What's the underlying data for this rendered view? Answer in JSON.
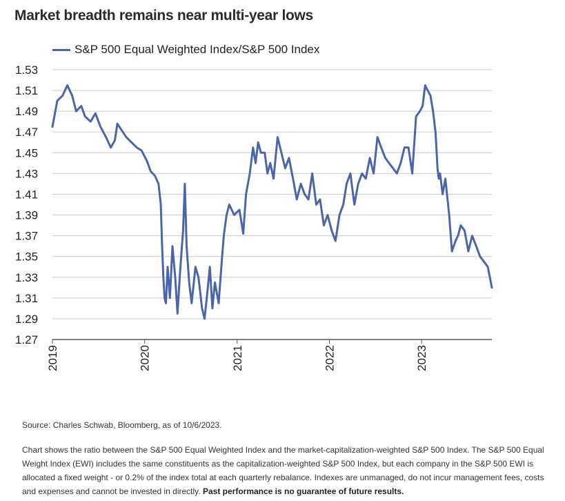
{
  "title": "Market breadth remains near multi-year lows",
  "source": "Source: Charles Schwab, Bloomberg, as of 10/6/2023.",
  "description": "Chart shows the ratio between the S&P 500 Equal Weighted Index and the market-capitalization-weighted S&P 500 Index. The S&P 500 Equal Weight Index (EWI) includes the same constituents as the capitalization-weighted S&P 500 Index, but each company in the S&P 500 EWI is allocated a fixed weight - or 0.2% of the index total at each quarterly rebalance. Indexes are unmanaged, do not incur management fees, costs and expenses and cannot be invested in directly.",
  "disclaimer": "Past performance is no guarantee of future results.",
  "colors": {
    "series": "#4a66a8",
    "grid": "#cccccc",
    "axis": "#555555"
  },
  "chart_data": {
    "type": "line",
    "title": "Market breadth remains near multi-year lows",
    "legend_position": "top-left",
    "grid": true,
    "series": [
      {
        "name": "S&P 500 Equal Weighted Index/S&P 500 Index",
        "x": [
          "2019-01-01",
          "2019-01-20",
          "2019-02-10",
          "2019-03-01",
          "2019-03-20",
          "2019-04-05",
          "2019-04-25",
          "2019-05-10",
          "2019-06-01",
          "2019-06-20",
          "2019-07-10",
          "2019-08-01",
          "2019-08-20",
          "2019-09-05",
          "2019-09-15",
          "2019-10-01",
          "2019-10-20",
          "2019-11-10",
          "2019-12-01",
          "2019-12-20",
          "2020-01-10",
          "2020-01-25",
          "2020-02-10",
          "2020-02-25",
          "2020-03-05",
          "2020-03-10",
          "2020-03-15",
          "2020-03-20",
          "2020-03-25",
          "2020-04-01",
          "2020-04-10",
          "2020-04-20",
          "2020-05-01",
          "2020-05-10",
          "2020-05-20",
          "2020-06-01",
          "2020-06-08",
          "2020-06-15",
          "2020-06-25",
          "2020-07-05",
          "2020-07-20",
          "2020-08-01",
          "2020-08-15",
          "2020-08-25",
          "2020-09-05",
          "2020-09-15",
          "2020-09-25",
          "2020-10-05",
          "2020-10-20",
          "2020-11-01",
          "2020-11-09",
          "2020-11-20",
          "2020-12-01",
          "2020-12-20",
          "2021-01-10",
          "2021-01-25",
          "2021-02-05",
          "2021-02-20",
          "2021-03-05",
          "2021-03-15",
          "2021-03-25",
          "2021-04-05",
          "2021-04-20",
          "2021-05-01",
          "2021-05-12",
          "2021-05-25",
          "2021-06-10",
          "2021-06-25",
          "2021-07-10",
          "2021-07-25",
          "2021-08-10",
          "2021-08-25",
          "2021-09-10",
          "2021-09-25",
          "2021-10-10",
          "2021-10-25",
          "2021-11-10",
          "2021-11-25",
          "2021-12-10",
          "2021-12-25",
          "2022-01-10",
          "2022-01-25",
          "2022-02-10",
          "2022-02-25",
          "2022-03-10",
          "2022-03-25",
          "2022-04-10",
          "2022-04-25",
          "2022-05-10",
          "2022-05-25",
          "2022-06-10",
          "2022-06-25",
          "2022-07-10",
          "2022-07-25",
          "2022-08-10",
          "2022-08-25",
          "2022-09-10",
          "2022-09-25",
          "2022-10-10",
          "2022-10-25",
          "2022-11-10",
          "2022-11-25",
          "2022-12-10",
          "2022-12-25",
          "2023-01-05",
          "2023-01-15",
          "2023-01-25",
          "2023-02-05",
          "2023-02-15",
          "2023-02-25",
          "2023-03-05",
          "2023-03-10",
          "2023-03-15",
          "2023-03-25",
          "2023-04-05",
          "2023-04-20",
          "2023-05-01",
          "2023-05-15",
          "2023-05-25",
          "2023-06-05",
          "2023-06-20",
          "2023-07-05",
          "2023-07-20",
          "2023-08-05",
          "2023-08-20",
          "2023-09-05",
          "2023-09-20",
          "2023-10-06"
        ],
        "values": [
          1.475,
          1.5,
          1.505,
          1.515,
          1.505,
          1.49,
          1.495,
          1.485,
          1.48,
          1.488,
          1.475,
          1.465,
          1.455,
          1.462,
          1.478,
          1.472,
          1.465,
          1.46,
          1.455,
          1.452,
          1.442,
          1.432,
          1.428,
          1.42,
          1.4,
          1.36,
          1.33,
          1.31,
          1.305,
          1.34,
          1.31,
          1.36,
          1.33,
          1.295,
          1.335,
          1.375,
          1.42,
          1.36,
          1.325,
          1.305,
          1.34,
          1.33,
          1.3,
          1.29,
          1.315,
          1.34,
          1.3,
          1.325,
          1.305,
          1.345,
          1.37,
          1.39,
          1.4,
          1.39,
          1.395,
          1.372,
          1.41,
          1.43,
          1.455,
          1.44,
          1.46,
          1.45,
          1.45,
          1.43,
          1.44,
          1.425,
          1.465,
          1.45,
          1.435,
          1.445,
          1.425,
          1.405,
          1.42,
          1.41,
          1.405,
          1.43,
          1.4,
          1.405,
          1.38,
          1.39,
          1.375,
          1.365,
          1.39,
          1.4,
          1.42,
          1.43,
          1.4,
          1.42,
          1.43,
          1.425,
          1.445,
          1.43,
          1.465,
          1.455,
          1.445,
          1.44,
          1.435,
          1.43,
          1.44,
          1.455,
          1.455,
          1.43,
          1.485,
          1.49,
          1.495,
          1.515,
          1.51,
          1.505,
          1.49,
          1.47,
          1.435,
          1.425,
          1.43,
          1.41,
          1.425,
          1.39,
          1.355,
          1.365,
          1.37,
          1.38,
          1.375,
          1.355,
          1.37,
          1.36,
          1.35,
          1.345,
          1.34,
          1.32
        ]
      }
    ],
    "x_ticks": [
      "2019",
      "2020",
      "2021",
      "2022",
      "2023"
    ],
    "x_range": [
      "2019-01-01",
      "2023-10-06"
    ],
    "ylim": [
      1.27,
      1.53
    ],
    "y_ticks": [
      1.27,
      1.29,
      1.31,
      1.33,
      1.35,
      1.37,
      1.39,
      1.41,
      1.43,
      1.45,
      1.47,
      1.49,
      1.51,
      1.53
    ]
  }
}
